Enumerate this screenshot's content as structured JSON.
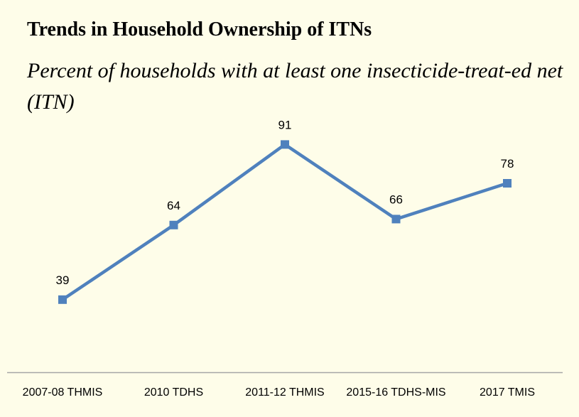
{
  "chart_data": {
    "type": "line",
    "title": "Trends in Household Ownership of ITNs",
    "subtitle": "Percent of households with at least one insecticide-treat-ed net (ITN)",
    "categories": [
      "2007-08 THMIS",
      "2010 TDHS",
      "2011-12 THMIS",
      "2015-16 TDHS-MIS",
      "2017 TMIS"
    ],
    "series": [
      {
        "values": [
          39,
          64,
          91,
          66,
          78
        ]
      }
    ],
    "xlabel": "",
    "ylabel": "",
    "ylim": [
      0,
      100
    ],
    "grid": false,
    "legend": "none",
    "marker": "square",
    "colors": {
      "background": "#fefde9",
      "line": "#4f81bd",
      "axis": "#a6a6a6",
      "text": "#000000"
    }
  }
}
